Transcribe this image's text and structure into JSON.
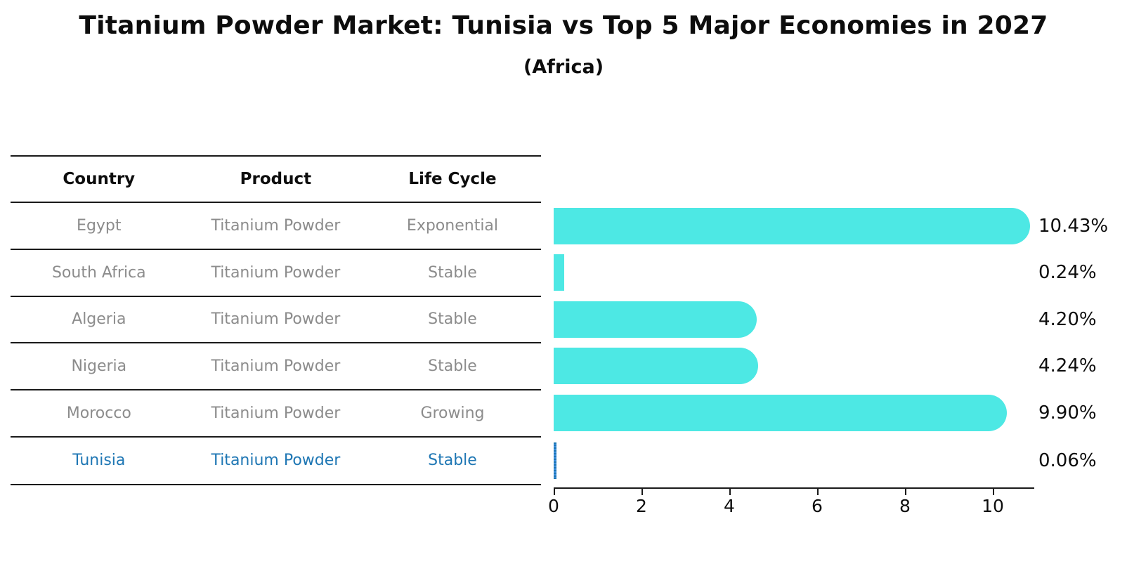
{
  "title": "Titanium Powder Market: Tunisia vs Top 5 Major Economies in 2027",
  "subtitle": "(Africa)",
  "table": {
    "headers": [
      "Country",
      "Product",
      "Life Cycle"
    ],
    "rows": [
      {
        "country": "Egypt",
        "product": "Titanium Powder",
        "life_cycle": "Exponential"
      },
      {
        "country": "South Africa",
        "product": "Titanium Powder",
        "life_cycle": "Stable"
      },
      {
        "country": "Algeria",
        "product": "Titanium Powder",
        "life_cycle": "Stable"
      },
      {
        "country": "Nigeria",
        "product": "Titanium Powder",
        "life_cycle": "Stable"
      },
      {
        "country": "Morocco",
        "product": "Titanium Powder",
        "life_cycle": "Growing"
      },
      {
        "country": "Tunisia",
        "product": "Titanium Powder",
        "life_cycle": "Stable"
      }
    ]
  },
  "chart_data": {
    "type": "bar",
    "orientation": "horizontal",
    "title": "Titanium Powder Market: Tunisia vs Top 5 Major Economies in 2027",
    "subtitle": "(Africa)",
    "categories": [
      "Egypt",
      "South Africa",
      "Algeria",
      "Nigeria",
      "Morocco",
      "Tunisia"
    ],
    "values": [
      10.43,
      0.24,
      4.2,
      4.24,
      9.9,
      0.06
    ],
    "value_labels": [
      "10.43%",
      "0.24%",
      "4.20%",
      "4.24%",
      "9.90%",
      "0.06%"
    ],
    "x_ticks": [
      0,
      2,
      4,
      6,
      8,
      10
    ],
    "xlim": [
      0,
      10.95
    ],
    "grid": false,
    "legend": false,
    "highlight_index": 5,
    "bar_color": "#4de8e4",
    "highlight_bar_color": "#3d8fe0",
    "highlight_text_color": "#1f77b4"
  },
  "colors": {
    "background": "#ffffff",
    "text_primary": "#0d0d0d",
    "table_text": "#8c8c8c",
    "line": "#1a1a1a"
  }
}
